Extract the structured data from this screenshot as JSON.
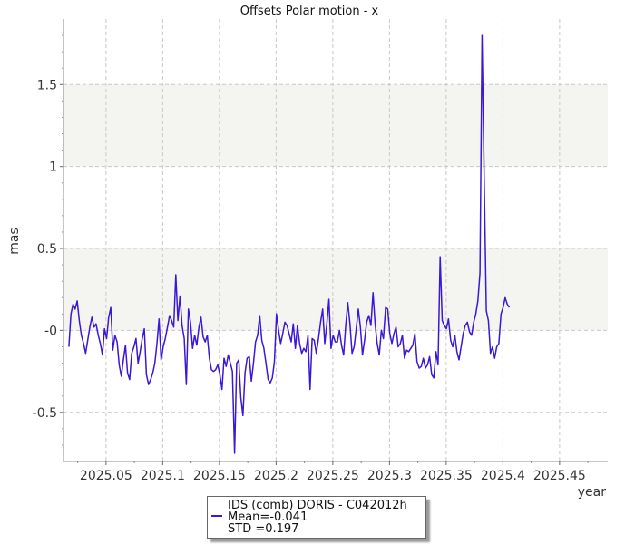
{
  "chart_data": {
    "type": "line",
    "title": "Offsets Polar motion - x",
    "xlabel": "year",
    "ylabel": "mas",
    "xlim": [
      2025.0125,
      2025.4925
    ],
    "ylim": [
      -0.8,
      1.9
    ],
    "x_ticks": [
      2025.05,
      2025.1,
      2025.15,
      2025.2,
      2025.25,
      2025.3,
      2025.35,
      2025.4,
      2025.45
    ],
    "x_tick_labels": [
      "2025.05",
      "2025.1",
      "2025.15",
      "2025.2",
      "2025.25",
      "2025.3",
      "2025.35",
      "2025.4",
      "2025.45"
    ],
    "y_ticks": [
      -0.5,
      0,
      0.5,
      1,
      1.5
    ],
    "y_tick_labels": [
      "-0.5",
      "-0",
      "0.5",
      "1",
      "1.5"
    ],
    "bands": [
      [
        0,
        0.5
      ],
      [
        1,
        1.5
      ]
    ],
    "grid": true,
    "series": [
      {
        "name": "IDS (comb) DORIS - C042012h",
        "color": "#3b17d6",
        "x_start": 2025.0172,
        "x_step": 0.00185,
        "values": [
          -0.1,
          0.1,
          0.16,
          0.13,
          0.18,
          0.06,
          -0.03,
          -0.08,
          -0.14,
          -0.06,
          0.02,
          0.08,
          0.02,
          0.04,
          -0.03,
          -0.08,
          -0.15,
          0.01,
          -0.05,
          0.08,
          0.14,
          -0.12,
          -0.03,
          -0.07,
          -0.21,
          -0.28,
          -0.18,
          -0.09,
          -0.26,
          -0.3,
          -0.14,
          -0.1,
          -0.05,
          -0.2,
          -0.13,
          -0.05,
          0.01,
          -0.27,
          -0.33,
          -0.3,
          -0.26,
          -0.2,
          -0.08,
          0.07,
          -0.18,
          -0.1,
          -0.05,
          0.02,
          0.09,
          0.06,
          0.02,
          0.34,
          0.06,
          0.21,
          0.03,
          -0.05,
          -0.33,
          0.13,
          0.05,
          -0.11,
          -0.03,
          -0.09,
          0.02,
          0.08,
          -0.04,
          -0.07,
          -0.03,
          -0.17,
          -0.24,
          -0.25,
          -0.24,
          -0.21,
          -0.27,
          -0.36,
          -0.17,
          -0.22,
          -0.15,
          -0.2,
          -0.25,
          -0.75,
          -0.2,
          -0.18,
          -0.41,
          -0.52,
          -0.26,
          -0.17,
          -0.16,
          -0.31,
          -0.2,
          -0.07,
          -0.03,
          0.09,
          -0.06,
          -0.11,
          -0.2,
          -0.3,
          -0.32,
          -0.29,
          -0.19,
          0.1,
          0.0,
          -0.08,
          -0.02,
          0.05,
          0.03,
          -0.02,
          -0.07,
          0.04,
          -0.11,
          0.03,
          -0.08,
          -0.14,
          -0.11,
          -0.13,
          -0.03,
          -0.36,
          -0.05,
          -0.06,
          -0.14,
          -0.05,
          0.05,
          0.13,
          -0.08,
          0.04,
          0.19,
          -0.11,
          -0.03,
          -0.07,
          -0.07,
          0.0,
          -0.09,
          -0.15,
          0.03,
          0.17,
          0.04,
          -0.14,
          -0.1,
          0.01,
          0.13,
          0.02,
          -0.15,
          -0.06,
          0.05,
          0.09,
          0.03,
          0.23,
          0.04,
          -0.08,
          -0.15,
          0.0,
          -0.05,
          0.14,
          0.13,
          -0.02,
          -0.08,
          -0.02,
          0.02,
          -0.1,
          -0.08,
          -0.03,
          -0.17,
          -0.12,
          -0.13,
          -0.11,
          -0.09,
          -0.02,
          -0.19,
          -0.23,
          -0.22,
          -0.17,
          -0.23,
          -0.21,
          -0.16,
          -0.27,
          -0.29,
          -0.13,
          -0.21,
          0.45,
          0.06,
          0.03,
          0.01,
          0.07,
          -0.06,
          -0.1,
          -0.03,
          -0.13,
          -0.18,
          -0.1,
          -0.02,
          0.03,
          0.05,
          -0.01,
          -0.03,
          0.05,
          0.1,
          0.18,
          0.35,
          1.8,
          0.95,
          0.12,
          0.06,
          -0.14,
          -0.1,
          -0.17,
          -0.1,
          -0.08,
          0.1,
          0.14,
          0.2,
          0.16,
          0.14
        ]
      }
    ],
    "legend": {
      "position": "bottom",
      "title": "IDS (comb) DORIS - C042012h",
      "mean_text": "Mean=-0.041",
      "std_text": "STD =0.197"
    }
  }
}
